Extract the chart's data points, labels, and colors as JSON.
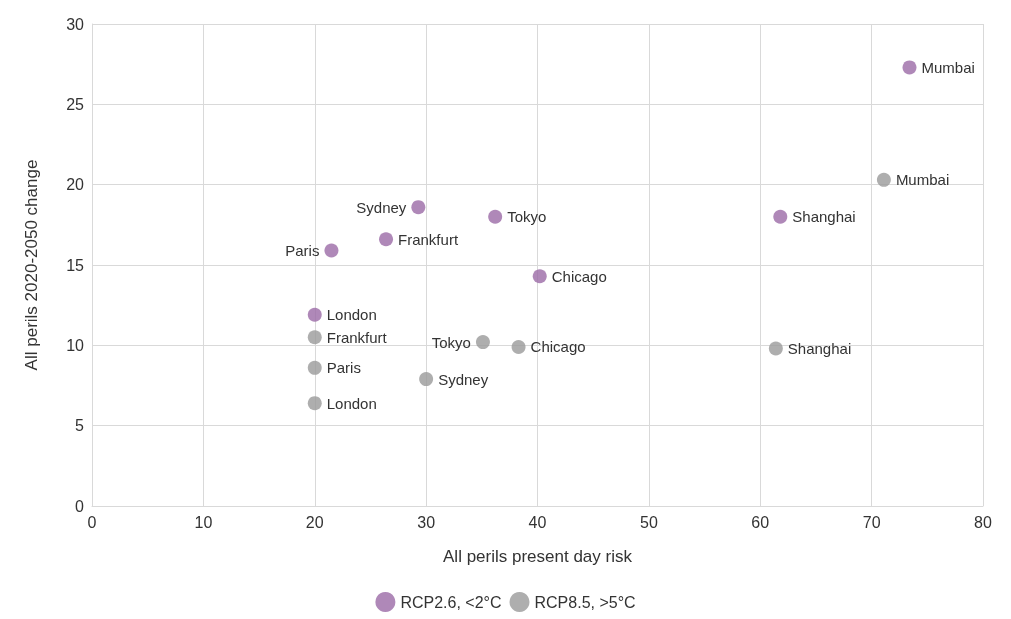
{
  "chart_data": {
    "type": "scatter",
    "xlabel": "All perils present day risk",
    "ylabel": "All perils 2020-2050 change",
    "xlim": [
      0,
      80
    ],
    "xticks": [
      0,
      10,
      20,
      30,
      40,
      50,
      60,
      70,
      80
    ],
    "ylim": [
      0,
      30
    ],
    "yticks": [
      0,
      5,
      10,
      15,
      20,
      25,
      30
    ],
    "grid": true,
    "legend": "bottom",
    "marker": "circle",
    "series": [
      {
        "name": "RCP2.6, <2°C",
        "color": "#9b6aa6",
        "x": [
          73.4,
          61.8,
          40.2,
          36.2,
          29.3,
          26.4,
          21.5,
          20.0
        ],
        "values": [
          27.3,
          18.0,
          14.3,
          18.0,
          18.6,
          16.6,
          15.9,
          11.9
        ]
      },
      {
        "name": "RCP8.5, >5°C",
        "color": "#9a9a9a",
        "x": [
          71.1,
          61.4,
          38.3,
          35.1,
          30.0,
          20.0,
          20.0,
          20.0
        ],
        "values": [
          20.3,
          9.8,
          9.9,
          10.2,
          7.9,
          10.5,
          8.6,
          6.4
        ]
      }
    ],
    "annotations": [
      {
        "text": "Mumbai",
        "x": 73.4,
        "y": 27.3
      },
      {
        "text": "Shanghai",
        "x": 61.8,
        "y": 18.0
      },
      {
        "text": "Chicago",
        "x": 40.2,
        "y": 14.3
      },
      {
        "text": "Tokyo",
        "x": 36.2,
        "y": 18.0
      },
      {
        "text": "Sydney",
        "x": 29.3,
        "y": 18.6
      },
      {
        "text": "Frankfurt",
        "x": 26.4,
        "y": 16.6
      },
      {
        "text": "Paris",
        "x": 21.5,
        "y": 15.9
      },
      {
        "text": "London",
        "x": 20.0,
        "y": 11.9
      },
      {
        "text": "Mumbai",
        "x": 71.1,
        "y": 20.3
      },
      {
        "text": "Shanghai",
        "x": 61.4,
        "y": 9.8
      },
      {
        "text": "Chicago",
        "x": 38.3,
        "y": 9.9
      },
      {
        "text": "Tokyo",
        "x": 35.1,
        "y": 10.2
      },
      {
        "text": "Sydney",
        "x": 30.0,
        "y": 7.9
      },
      {
        "text": "Frankfurt",
        "x": 20.0,
        "y": 10.5
      },
      {
        "text": "Paris",
        "x": 20.0,
        "y": 8.6
      },
      {
        "text": "London",
        "x": 20.0,
        "y": 6.4
      }
    ]
  }
}
